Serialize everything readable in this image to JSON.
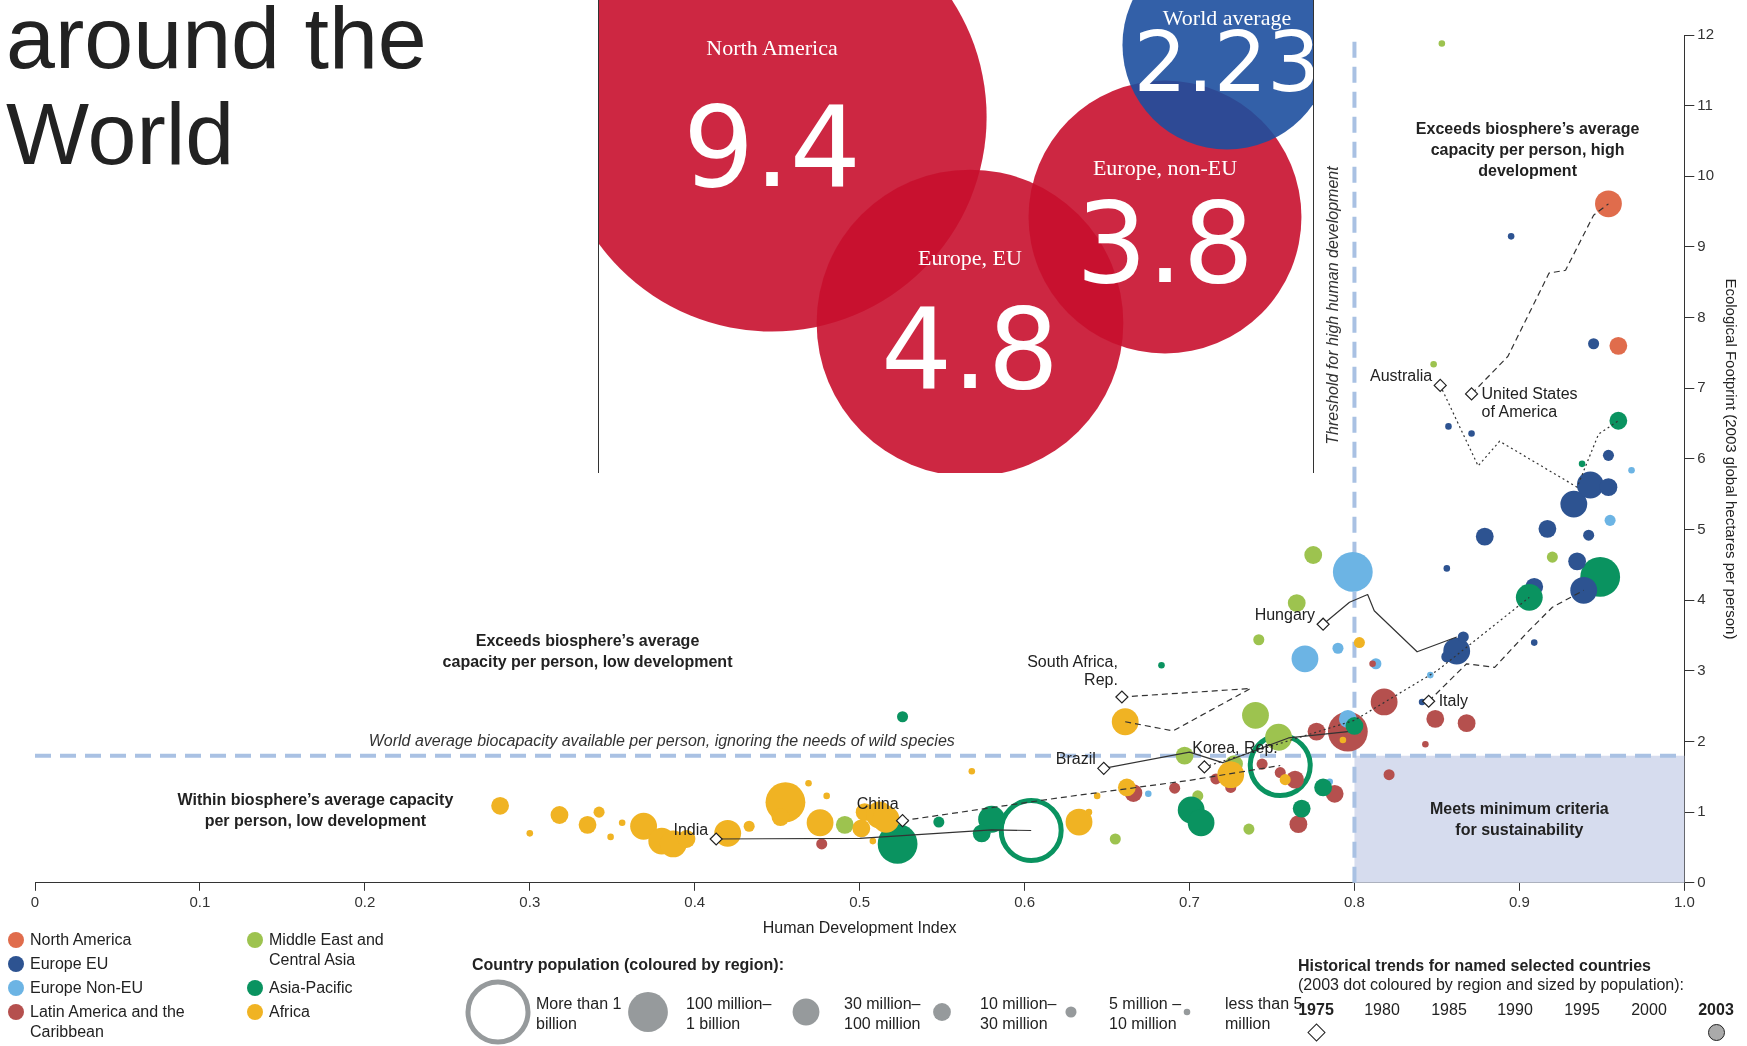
{
  "chart_data": [
    {
      "type": "bubble",
      "title": "around the World",
      "xlabel": "Human Development Index",
      "ylabel": "Ecological Footprint (2003 global hectares per person)",
      "xlim": [
        0,
        1
      ],
      "xticks": [
        0,
        0.1,
        0.2,
        0.3,
        0.4,
        0.5,
        0.6,
        0.7,
        0.8,
        0.9,
        {
          "value": 1,
          "label": "1.0"
        }
      ],
      "ylim": [
        0,
        12
      ],
      "yticks": [
        0,
        1,
        2,
        3,
        4,
        5,
        6,
        7,
        8,
        9,
        10,
        11,
        12
      ],
      "grid": false,
      "legend": "bottom left",
      "marker": "circle",
      "size_legend": [
        {
          "value": 1,
          "label": "More than 1 billion"
        },
        {
          "value": 0.44,
          "label": "100 million–1 billion"
        },
        {
          "value": 0.2,
          "label": "30 million–100 million"
        },
        {
          "value": 0.088,
          "label": "10 million–30 million"
        },
        {
          "value": 0.034,
          "label": "5 million – 10 million"
        },
        {
          "value": 0.012,
          "label": "less than 5 million"
        }
      ],
      "ref_lines": [
        {
          "axis": "y",
          "value": 1.8,
          "label": "World average biocapacity available per person, ignoring the needs of wild species",
          "color": "#a9c1e3",
          "line_style": "dashed"
        },
        {
          "axis": "x",
          "value": 0.8,
          "label": "Threshold for high human development",
          "color": "#a9c1e3",
          "line_style": "dashed"
        }
      ],
      "bands": [
        {
          "axis": "x",
          "from": 0.8,
          "to": 1,
          "label": "Meets minimum criteria for sustainability",
          "color": "#d6dcee"
        }
      ],
      "series": [
        {
          "name": "North America",
          "color": "#e06c4c",
          "x": [
            0.954,
            0.96
          ],
          "values": [
            9.61,
            7.6
          ],
          "sizes": [
            0.2,
            0.088
          ]
        },
        {
          "name": "Europe EU",
          "color": "#2d5391",
          "x": [
            0.862,
            0.866,
            0.856,
            0.909,
            0.909,
            0.939,
            0.935,
            0.879,
            0.856,
            0.917,
            0.933,
            0.943,
            0.954,
            0.942,
            0.954,
            0.857,
            0.871,
            0.895,
            0.945,
            0.841
          ],
          "values": [
            3.28,
            3.48,
            3.2,
            3.4,
            4.19,
            4.14,
            4.55,
            4.9,
            4.45,
            5.01,
            5.36,
            5.63,
            5.6,
            4.92,
            6.05,
            6.46,
            6.36,
            9.15,
            7.63,
            2.56
          ],
          "sizes": [
            0.2,
            0.034,
            0.034,
            0.012,
            0.088,
            0.2,
            0.088,
            0.088,
            0.012,
            0.088,
            0.2,
            0.2,
            0.088,
            0.034,
            0.034,
            0.012,
            0.012,
            0.012,
            0.034,
            0.012
          ]
        },
        {
          "name": "Europe Non-EU",
          "color": "#6cb4e4",
          "x": [
            0.799,
            0.77,
            0.79,
            0.813,
            0.796,
            0.675,
            0.846,
            0.955,
            0.968,
            0.785
          ],
          "values": [
            4.4,
            3.17,
            3.32,
            3.1,
            2.32,
            1.26,
            2.94,
            5.13,
            5.84,
            1.43
          ],
          "sizes": [
            0.44,
            0.2,
            0.034,
            0.034,
            0.088,
            0.012,
            0.012,
            0.034,
            0.012,
            0.012
          ]
        },
        {
          "name": "Latin America and the Caribbean",
          "color": "#b5504e",
          "x": [
            0.477,
            0.666,
            0.691,
            0.716,
            0.725,
            0.744,
            0.755,
            0.764,
            0.766,
            0.788,
            0.777,
            0.796,
            0.818,
            0.821,
            0.849,
            0.868,
            0.843,
            0.811
          ],
          "values": [
            0.55,
            1.27,
            1.34,
            1.47,
            1.35,
            1.68,
            1.56,
            1.46,
            0.83,
            1.26,
            2.14,
            2.14,
            2.56,
            1.53,
            2.32,
            2.26,
            1.96,
            3.1
          ],
          "sizes": [
            0.034,
            0.088,
            0.034,
            0.034,
            0.034,
            0.034,
            0.034,
            0.088,
            0.088,
            0.088,
            0.088,
            0.44,
            0.2,
            0.034,
            0.088,
            0.088,
            0.012,
            0.012
          ]
        },
        {
          "name": "Middle East and Central Asia",
          "color": "#9dc34f",
          "x": [
            0.491,
            0.655,
            0.697,
            0.705,
            0.736,
            0.74,
            0.754,
            0.742,
            0.765,
            0.775,
            0.727,
            0.853,
            0.848,
            0.92
          ],
          "values": [
            0.82,
            0.62,
            1.8,
            1.23,
            0.76,
            2.37,
            2.06,
            3.44,
            3.96,
            4.64,
            1.68,
            11.88,
            7.34,
            4.61
          ],
          "sizes": [
            0.088,
            0.034,
            0.088,
            0.034,
            0.034,
            0.2,
            0.2,
            0.034,
            0.088,
            0.088,
            0.088,
            0.012,
            0.012,
            0.034
          ]
        },
        {
          "name": "Asia-Pacific",
          "color": "#0a9360",
          "x": [
            0.523,
            0.548,
            0.58,
            0.574,
            0.604,
            0.526,
            0.683,
            0.701,
            0.707,
            0.755,
            0.768,
            0.781,
            0.8,
            0.906,
            0.949,
            0.96,
            0.938
          ],
          "values": [
            0.55,
            0.86,
            0.9,
            0.7,
            0.74,
            2.35,
            3.08,
            1.03,
            0.85,
            1.66,
            1.05,
            1.35,
            2.22,
            4.04,
            4.33,
            6.54,
            5.93
          ],
          "sizes": [
            0.44,
            0.034,
            0.2,
            0.088,
            1,
            0.034,
            0.012,
            0.2,
            0.2,
            1,
            0.088,
            0.088,
            0.088,
            0.2,
            0.44,
            0.088,
            0.012
          ]
        },
        {
          "name": "Africa",
          "color": "#f0b323",
          "x": [
            0.282,
            0.3,
            0.318,
            0.335,
            0.342,
            0.349,
            0.356,
            0.369,
            0.38,
            0.387,
            0.395,
            0.42,
            0.433,
            0.455,
            0.452,
            0.469,
            0.48,
            0.476,
            0.503,
            0.512,
            0.516,
            0.501,
            0.508,
            0.568,
            0.633,
            0.639,
            0.644,
            0.661,
            0.662,
            0.725,
            0.758,
            0.803,
            0.793
          ],
          "values": [
            1.09,
            0.7,
            0.96,
            0.82,
            1.0,
            0.65,
            0.85,
            0.8,
            0.59,
            0.55,
            0.62,
            0.7,
            0.8,
            1.14,
            0.93,
            1.41,
            1.23,
            0.85,
            1.0,
            0.96,
            0.9,
            0.77,
            0.59,
            1.58,
            0.86,
            1.0,
            1.23,
            2.28,
            1.35,
            1.53,
            1.46,
            3.4,
            2.02
          ],
          "sizes": [
            0.088,
            0.012,
            0.088,
            0.088,
            0.034,
            0.012,
            0.012,
            0.2,
            0.2,
            0.2,
            0.088,
            0.2,
            0.034,
            0.44,
            0.088,
            0.012,
            0.012,
            0.2,
            0.088,
            0.2,
            0.2,
            0.088,
            0.012,
            0.012,
            0.2,
            0.012,
            0.012,
            0.2,
            0.088,
            0.2,
            0.034,
            0.034,
            0.012
          ]
        },
        {
          "type": "line",
          "color": "#333333",
          "marker": "none",
          "line_style": "solid",
          "x": [
            0.413,
            0.5,
            0.58,
            0.604
          ],
          "values": [
            0.62,
            0.63,
            0.75,
            0.74
          ]
        },
        {
          "type": "line",
          "color": "#333333",
          "marker": "none",
          "line_style": "dashed",
          "x": [
            0.526,
            0.62,
            0.7,
            0.755
          ],
          "values": [
            0.88,
            1.2,
            1.45,
            1.66
          ]
        },
        {
          "type": "line",
          "color": "#333333",
          "marker": "none",
          "line_style": "solid",
          "x": [
            0.648,
            0.7,
            0.72,
            0.76,
            0.796
          ],
          "values": [
            1.62,
            1.85,
            1.7,
            2.05,
            2.14
          ]
        },
        {
          "type": "line",
          "color": "#333333",
          "marker": "none",
          "line_style": "dotted",
          "x": [
            0.709,
            0.8,
            0.85,
            0.906
          ],
          "values": [
            1.64,
            2.3,
            3.0,
            4.04
          ]
        },
        {
          "type": "line",
          "color": "#333333",
          "marker": "none",
          "line_style": "dashed",
          "x": [
            0.659,
            0.737,
            0.69,
            0.661
          ],
          "values": [
            2.63,
            2.75,
            2.15,
            2.28
          ]
        },
        {
          "type": "line",
          "color": "#333333",
          "marker": "none",
          "line_style": "solid",
          "x": [
            0.781,
            0.797,
            0.808,
            0.812,
            0.838,
            0.862
          ],
          "values": [
            3.66,
            3.97,
            4.08,
            3.85,
            3.27,
            3.48
          ]
        },
        {
          "type": "line",
          "color": "#333333",
          "marker": "none",
          "line_style": "dashed",
          "x": [
            0.845,
            0.868,
            0.885,
            0.905,
            0.92,
            0.939
          ],
          "values": [
            2.57,
            3.1,
            3.05,
            3.55,
            3.9,
            4.14
          ]
        },
        {
          "type": "line",
          "color": "#333333",
          "marker": "none",
          "line_style": "dotted",
          "x": [
            0.852,
            0.875,
            0.888,
            0.935,
            0.948,
            0.96
          ],
          "values": [
            7.04,
            5.9,
            6.25,
            5.6,
            6.35,
            6.54
          ]
        },
        {
          "type": "line",
          "color": "#333333",
          "marker": "none",
          "line_style": "dashed",
          "x": [
            0.871,
            0.893,
            0.918,
            0.928,
            0.945,
            0.954
          ],
          "values": [
            6.92,
            7.45,
            8.63,
            8.67,
            9.45,
            9.61
          ]
        },
        {
          "type": "scatter",
          "color": "#ffffff",
          "marker": "diamond",
          "x": [
            0.413,
            0.526,
            0.648,
            0.709,
            0.659,
            0.781,
            0.845,
            0.852,
            0.871
          ],
          "values": [
            0.62,
            0.88,
            1.62,
            1.64,
            2.63,
            3.66,
            2.57,
            7.04,
            6.92
          ]
        }
      ],
      "annotations": [
        "Exceeds biosphere’s average capacity per person, low development",
        "Within biosphere’s average capacity per person, low development",
        "Exceeds biosphere’s average capacity per person, high development",
        "Country population (coloured by region):",
        "Historical trends for named selected countries",
        "(2003 dot coloured by region and sized by population):",
        "1975",
        "1980",
        "1985",
        "1990",
        "1995",
        "2000",
        "2003",
        {
          "text": "India",
          "x": 0.413,
          "y": 0.62
        },
        {
          "text": "China",
          "x": 0.526,
          "y": 0.88
        },
        {
          "text": "Brazil",
          "x": 0.648,
          "y": 1.62
        },
        {
          "text": "Korea, Rep.",
          "x": 0.709,
          "y": 1.64
        },
        {
          "text": "South Africa, Rep.",
          "x": 0.659,
          "y": 2.63
        },
        {
          "text": "Hungary",
          "x": 0.781,
          "y": 3.66
        },
        {
          "text": "Italy",
          "x": 0.845,
          "y": 2.57
        },
        {
          "text": "Australia",
          "x": 0.852,
          "y": 7.04
        },
        {
          "text": "United States of America",
          "x": 0.871,
          "y": 6.92
        }
      ]
    },
    {
      "type": "other",
      "categories": [
        "North America",
        "Europe, EU",
        "Europe, non-EU",
        "World average"
      ],
      "values": [
        9.4,
        4.8,
        3.8,
        2.23
      ],
      "colors": [
        "#c8102e",
        "#c8102e",
        "#c8102e",
        "#1d4f9e"
      ],
      "data_labels": true
    }
  ]
}
